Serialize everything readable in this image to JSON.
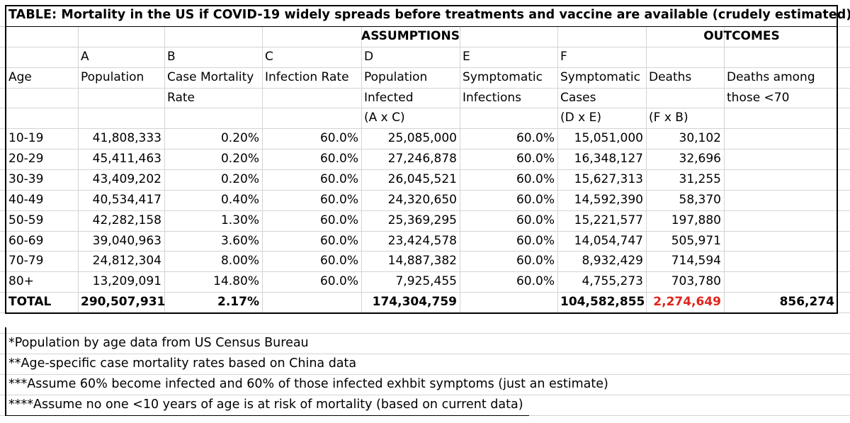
{
  "title": "TABLE: Mortality in the US if COVID-19 widely spreads before treatments and vaccine are available (crudely estimated)",
  "section_headers": {
    "assumptions": "ASSUMPTIONS",
    "outcomes": "OUTCOMES"
  },
  "column_letters": [
    "A",
    "B",
    "C",
    "D",
    "E",
    "F"
  ],
  "header_lines": [
    [
      "Age",
      "Population",
      "Case Mortality",
      "Infection Rate",
      "Population",
      "Symptomatic",
      "Symptomatic",
      "Deaths",
      "Deaths among"
    ],
    [
      "",
      "",
      "Rate",
      "",
      "Infected",
      "Infections",
      "Cases",
      "",
      "those <70"
    ],
    [
      "",
      "",
      "",
      "",
      "(A x C)",
      "",
      "(D x E)",
      "(F x B)",
      ""
    ]
  ],
  "rows": [
    [
      "10-19",
      "41,808,333",
      "0.20%",
      "60.0%",
      "25,085,000",
      "60.0%",
      "15,051,000",
      "30,102",
      ""
    ],
    [
      "20-29",
      "45,411,463",
      "0.20%",
      "60.0%",
      "27,246,878",
      "60.0%",
      "16,348,127",
      "32,696",
      ""
    ],
    [
      "30-39",
      "43,409,202",
      "0.20%",
      "60.0%",
      "26,045,521",
      "60.0%",
      "15,627,313",
      "31,255",
      ""
    ],
    [
      "40-49",
      "40,534,417",
      "0.40%",
      "60.0%",
      "24,320,650",
      "60.0%",
      "14,592,390",
      "58,370",
      ""
    ],
    [
      "50-59",
      "42,282,158",
      "1.30%",
      "60.0%",
      "25,369,295",
      "60.0%",
      "15,221,577",
      "197,880",
      ""
    ],
    [
      "60-69",
      "39,040,963",
      "3.60%",
      "60.0%",
      "23,424,578",
      "60.0%",
      "14,054,747",
      "505,971",
      ""
    ],
    [
      "70-79",
      "24,812,304",
      "8.00%",
      "60.0%",
      "14,887,382",
      "60.0%",
      "8,932,429",
      "714,594",
      ""
    ],
    [
      "80+",
      "13,209,091",
      "14.80%",
      "60.0%",
      "7,925,455",
      "60.0%",
      "4,755,273",
      "703,780",
      ""
    ]
  ],
  "total_row": [
    "TOTAL",
    "290,507,931",
    "2.17%",
    "",
    "174,304,759",
    "",
    "104,582,855",
    "2,274,649",
    "856,274"
  ],
  "highlight_color": "#e0241b",
  "notes": [
    "*Population by age data from US Census Bureau",
    "**Age-specific case mortality rates based on China data",
    "***Assume 60% become infected and 60% of those infected exhbit symptoms (just an estimate)",
    "****Assume no one <10 years of age is at risk of mortality (based on current data)"
  ]
}
